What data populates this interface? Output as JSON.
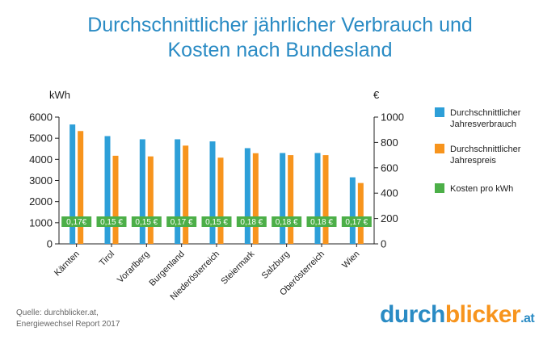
{
  "title": {
    "line1": "Durchschnittlicher jährlicher Verbrauch und",
    "line2": "Kosten nach Bundesland"
  },
  "colors": {
    "title": "#2a8bc4",
    "consumption": "#2d9fd8",
    "price": "#f7941d",
    "kwh_cost": "#4caf48",
    "axis": "#222222"
  },
  "chart_data": {
    "type": "bar",
    "title": "Durchschnittlicher jährlicher Verbrauch und Kosten nach Bundesland",
    "categories": [
      "Kärnten",
      "Tirol",
      "Vorarlberg",
      "Burgenland",
      "Niederösterreich",
      "Steiermark",
      "Salzburg",
      "Oberösterreich",
      "Wien"
    ],
    "series": [
      {
        "name": "Durchschnittlicher Jahresverbrauch",
        "axis": "left",
        "unit": "kWh",
        "values": [
          5650,
          5100,
          4950,
          4950,
          4850,
          4530,
          4300,
          4300,
          3150
        ]
      },
      {
        "name": "Durchschnittlicher Jahrespreis",
        "axis": "right",
        "unit": "€",
        "values": [
          890,
          695,
          690,
          775,
          680,
          715,
          700,
          700,
          480
        ]
      },
      {
        "name": "Kosten pro kWh",
        "unit": "€/kWh",
        "labels": [
          "0,17€",
          "0,15 €",
          "0,15 €",
          "0,17 €",
          "0,15 €",
          "0,18 €",
          "0,18 €",
          "0,18 €",
          "0,17 €"
        ]
      }
    ],
    "y_left": {
      "label": "kWh",
      "min": 0,
      "max": 6000,
      "ticks": [
        "0",
        "1000",
        "2000",
        "3000",
        "4000",
        "5000",
        "6000"
      ]
    },
    "y_right": {
      "label": "€",
      "min": 0,
      "max": 1000,
      "ticks": [
        "0",
        "200",
        "400",
        "600",
        "800",
        "1000"
      ]
    },
    "legend": [
      {
        "line1": "Durchschnittlicher",
        "line2": "Jahresverbrauch",
        "color": "#2d9fd8"
      },
      {
        "line1": "Durchschnittlicher",
        "line2": "Jahrespreis",
        "color": "#f7941d"
      },
      {
        "line1": "Kosten pro kWh",
        "line2": "",
        "color": "#4caf48"
      }
    ],
    "legend_position": "right",
    "grid": false
  },
  "source": {
    "line1": "Quelle: durchblicker.at,",
    "line2": "Energiewechsel Report 2017"
  },
  "logo": {
    "part1": "durch",
    "part2": "blicker",
    "part3": ".at"
  }
}
